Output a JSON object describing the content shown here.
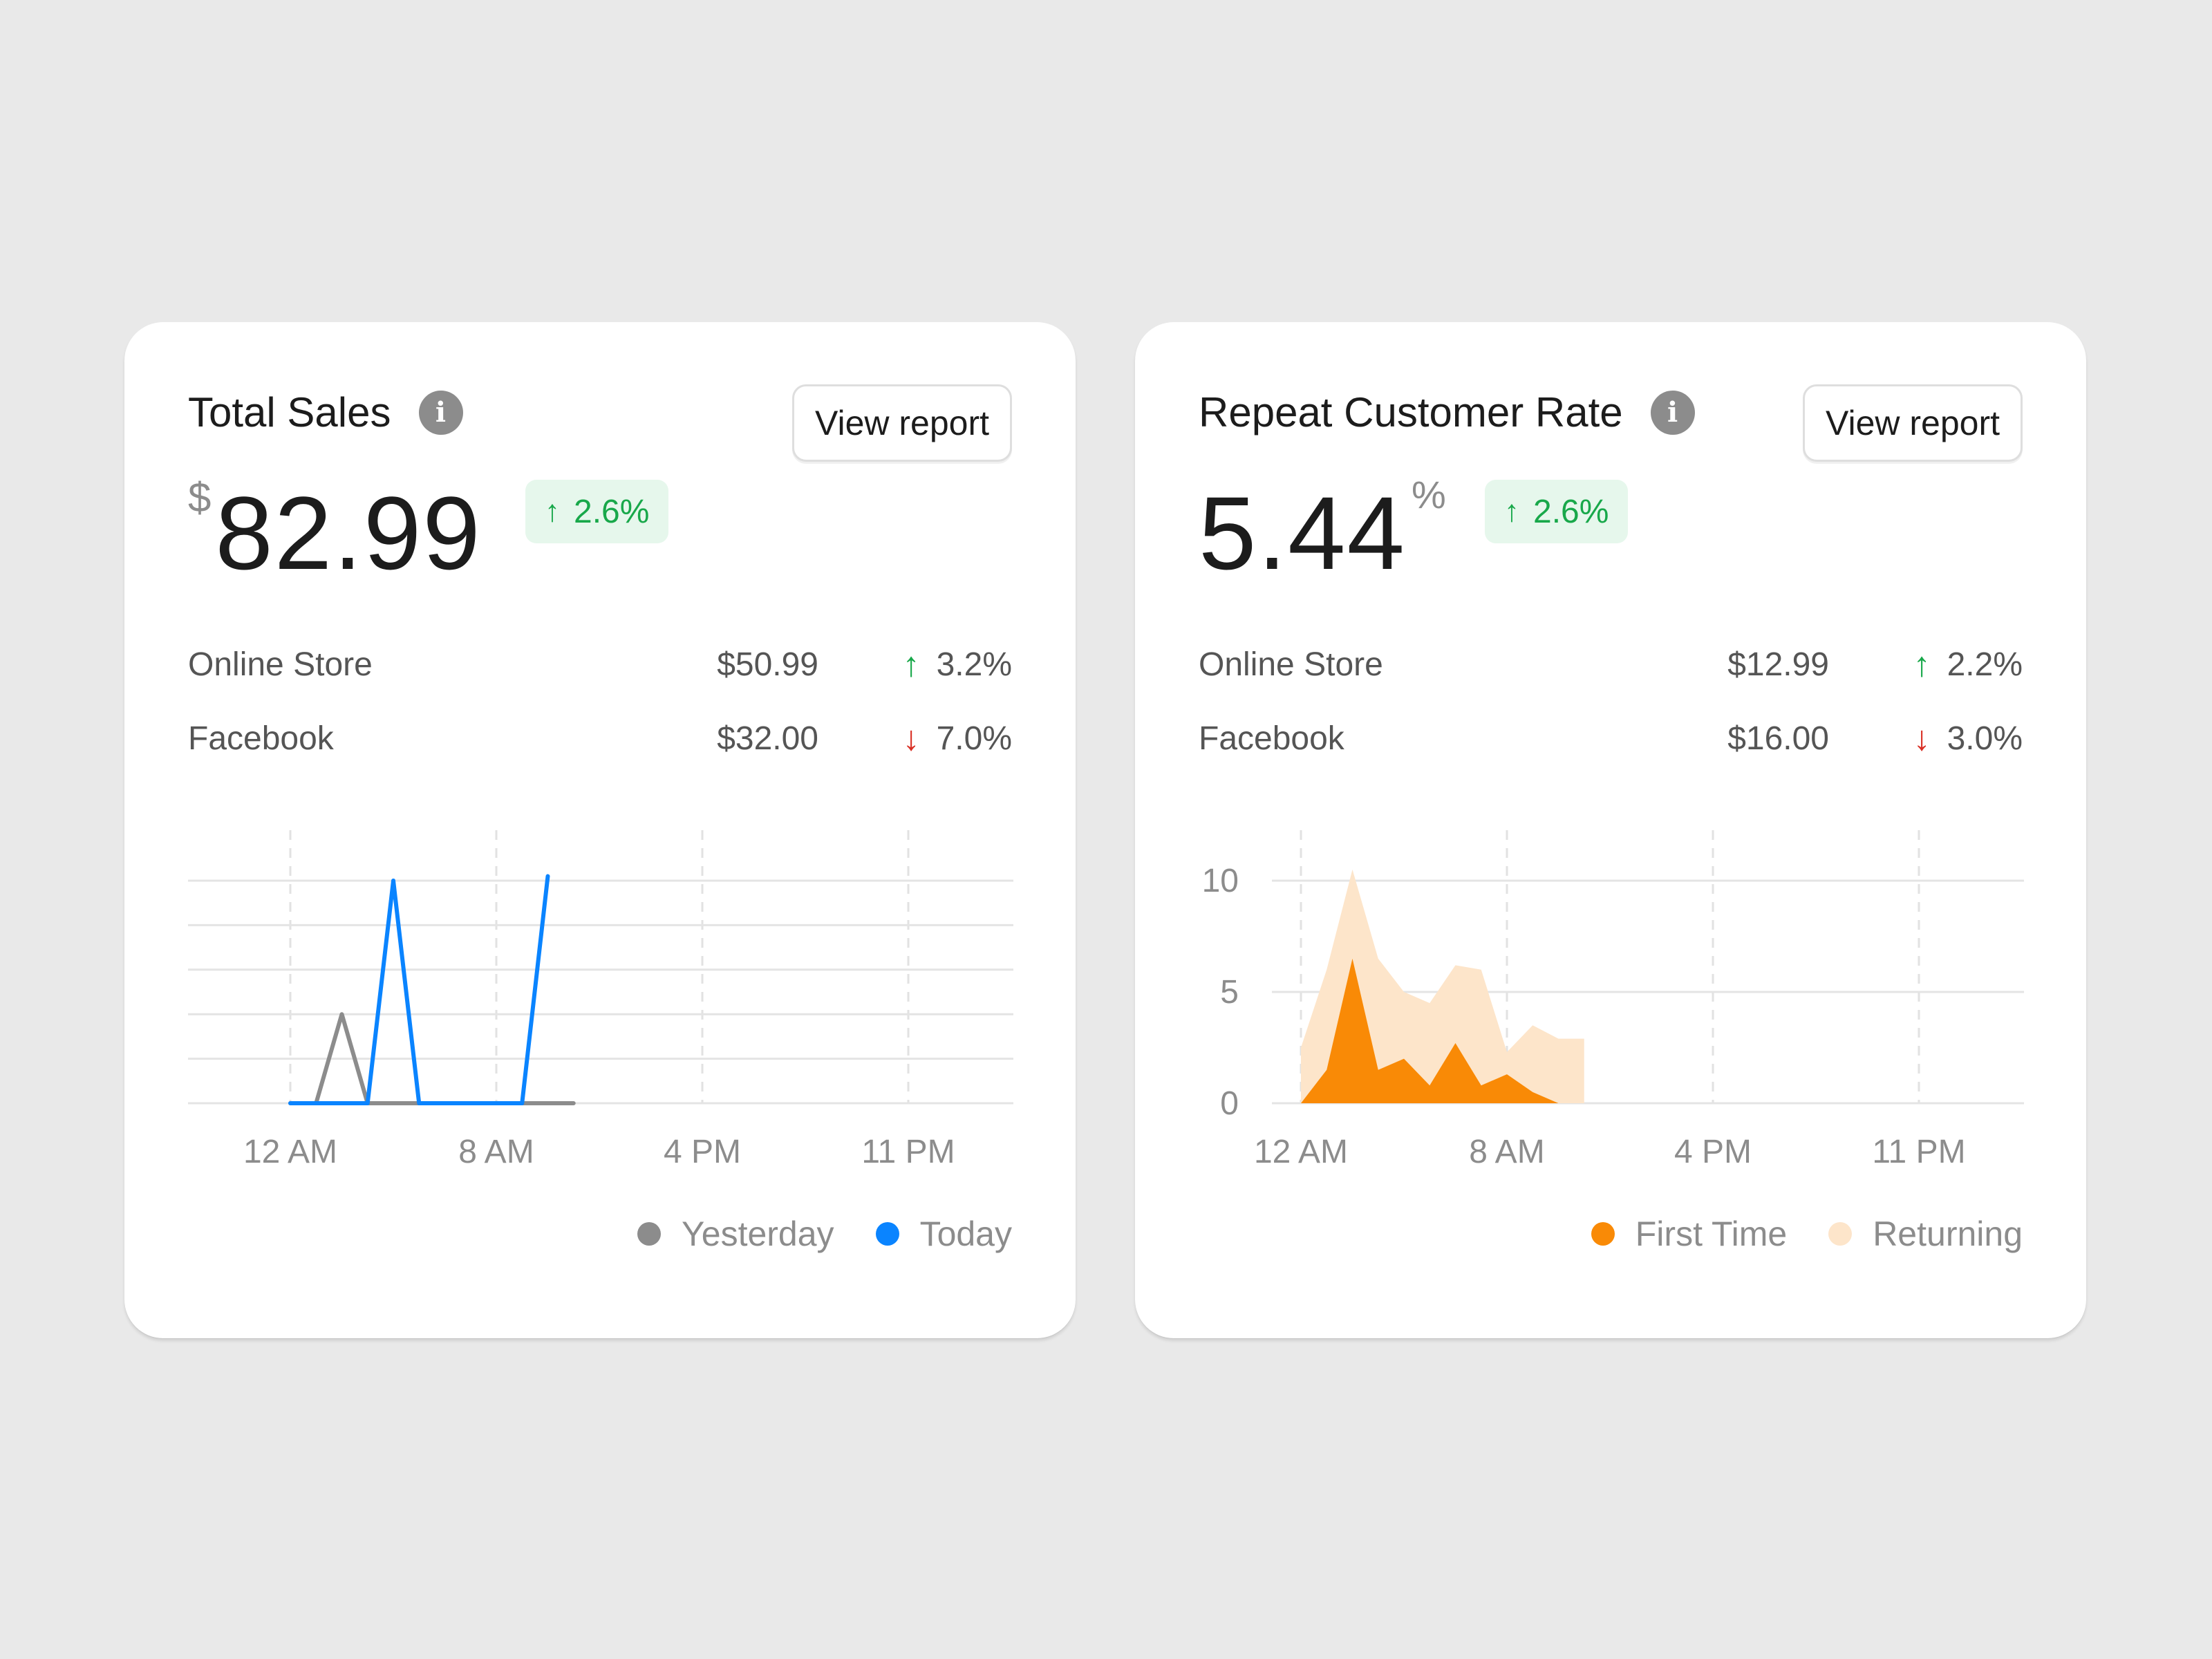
{
  "cards": [
    {
      "title": "Total Sales",
      "view_report_label": "View report",
      "value_prefix": "$",
      "value": "82.99",
      "value_suffix": "",
      "badge": {
        "arrow": "↑",
        "text": "2.6%"
      },
      "rows": [
        {
          "label": "Online Store",
          "amount": "$50.99",
          "direction": "up",
          "arrow": "↑",
          "change": "3.2%"
        },
        {
          "label": "Facebook",
          "amount": "$32.00",
          "direction": "down",
          "arrow": "↓",
          "change": "7.0%"
        }
      ],
      "legend": [
        {
          "name": "Yesterday",
          "color": "#8c8c8c"
        },
        {
          "name": "Today",
          "color": "#0a84ff"
        }
      ]
    },
    {
      "title": "Repeat Customer Rate",
      "view_report_label": "View report",
      "value_prefix": "",
      "value": "5.44",
      "value_suffix": "%",
      "badge": {
        "arrow": "↑",
        "text": "2.6%"
      },
      "rows": [
        {
          "label": "Online Store",
          "amount": "$12.99",
          "direction": "up",
          "arrow": "↑",
          "change": "2.2%"
        },
        {
          "label": "Facebook",
          "amount": "$16.00",
          "direction": "down",
          "arrow": "↓",
          "change": "3.0%"
        }
      ],
      "legend": [
        {
          "name": "First Time",
          "color": "#f98a06"
        },
        {
          "name": "Returning",
          "color": "#fde5ca"
        }
      ]
    }
  ],
  "chart_data": [
    {
      "type": "line",
      "x_ticks": [
        "12 AM",
        "8 AM",
        "4 PM",
        "11 PM"
      ],
      "x_hours": [
        0,
        1,
        2,
        3,
        4,
        5,
        6,
        7,
        8,
        9,
        10,
        11
      ],
      "ylim": [
        0,
        10
      ],
      "grid": true,
      "series": [
        {
          "name": "Yesterday",
          "color": "#8c8c8c",
          "values": [
            0,
            0,
            4,
            0,
            0,
            0,
            0,
            0,
            0,
            0,
            0,
            0
          ]
        },
        {
          "name": "Today",
          "color": "#0a84ff",
          "values": [
            0,
            0,
            0,
            0,
            10,
            0,
            0,
            0,
            0,
            0,
            10.2,
            null
          ]
        }
      ]
    },
    {
      "type": "area",
      "x_ticks": [
        "12 AM",
        "8 AM",
        "4 PM",
        "11 PM"
      ],
      "y_ticks": [
        "10",
        "5",
        "0"
      ],
      "ylim": [
        0,
        10
      ],
      "grid": true,
      "x_hours": [
        0,
        1,
        2,
        3,
        4,
        5,
        6,
        7,
        8,
        9,
        10,
        11
      ],
      "series": [
        {
          "name": "Returning",
          "color": "#fde5ca",
          "values": [
            2.5,
            6,
            10.5,
            6.5,
            5,
            4.5,
            6.2,
            6,
            2.3,
            3.5,
            2.9,
            2.9
          ]
        },
        {
          "name": "First Time",
          "color": "#f98a06",
          "values": [
            0,
            1.5,
            6.5,
            1.5,
            2,
            0.8,
            2.7,
            0.8,
            1.3,
            0.5,
            0,
            null
          ]
        }
      ]
    }
  ]
}
